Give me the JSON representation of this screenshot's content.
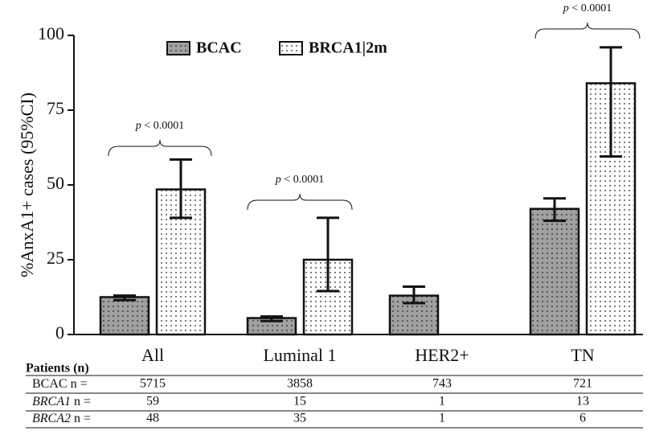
{
  "chart_data": {
    "type": "bar",
    "y_label": "%AnxA1+ cases (95%CI)",
    "categories": [
      "All",
      "Luminal 1",
      "HER2+",
      "TN"
    ],
    "series": [
      {
        "name": "BCAC",
        "color": "#a0a0a0",
        "values": [
          12.5,
          5.5,
          13,
          42
        ],
        "ci_low": [
          11.5,
          4.5,
          10.5,
          38
        ],
        "ci_high": [
          13,
          6,
          16,
          45.5
        ]
      },
      {
        "name": "BRCA1|2m",
        "color": "#ffffff",
        "values": [
          48.5,
          25,
          null,
          84
        ],
        "ci_low": [
          39,
          14.5,
          null,
          59.5
        ],
        "ci_high": [
          58.5,
          39,
          null,
          96
        ]
      }
    ],
    "ylim": [
      0,
      100
    ],
    "yticks": [
      0,
      25,
      50,
      75,
      100
    ],
    "annotations": [
      {
        "p": "p",
        "text": "< 0.0001"
      },
      {
        "p": "p",
        "text": "< 0.0001"
      },
      {
        "p": "p",
        "text": "< 0.0001"
      }
    ]
  },
  "table": {
    "header": "Patients (n)",
    "rows": [
      {
        "name": "BCAC",
        "suffix": "n =",
        "values": [
          5715,
          3858,
          743,
          721
        ]
      },
      {
        "name": "BRCA1",
        "suffix": "n =",
        "values": [
          59,
          15,
          1,
          13
        ]
      },
      {
        "name": "BRCA2",
        "suffix": "n =",
        "values": [
          48,
          35,
          1,
          6
        ]
      }
    ]
  }
}
